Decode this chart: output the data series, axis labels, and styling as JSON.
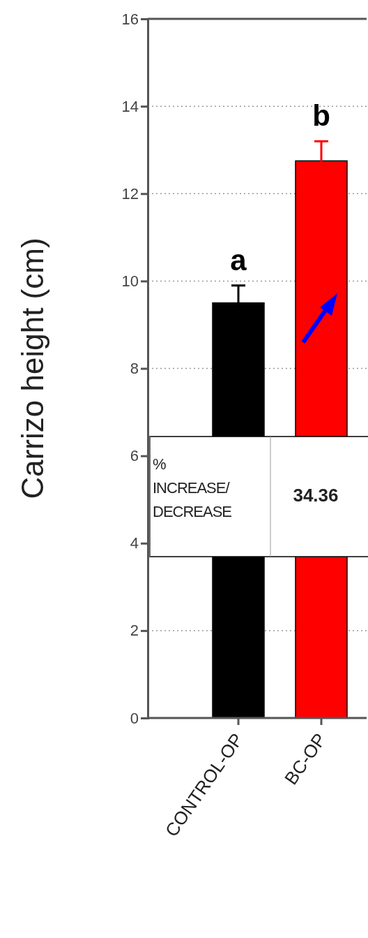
{
  "chart_data": {
    "type": "bar",
    "ylabel": "Carrizo height (cm)",
    "categories": [
      "CONTROL-OP",
      "BC-OP"
    ],
    "values": [
      9.5,
      12.75
    ],
    "colors": [
      "#000000",
      "#ff0000"
    ],
    "errors": [
      0.4,
      0.45
    ],
    "ylim": [
      0,
      16
    ],
    "yticks": [
      0,
      2,
      4,
      6,
      8,
      10,
      12,
      14,
      16
    ],
    "grid": "y",
    "annotations": [
      {
        "text": "a",
        "x": "CONTROL-OP",
        "y": 9.9
      },
      {
        "text": "b",
        "x": "BC-OP",
        "y": 13.2
      },
      "% INCREASE/ DECREASE",
      "34.36"
    ]
  }
}
